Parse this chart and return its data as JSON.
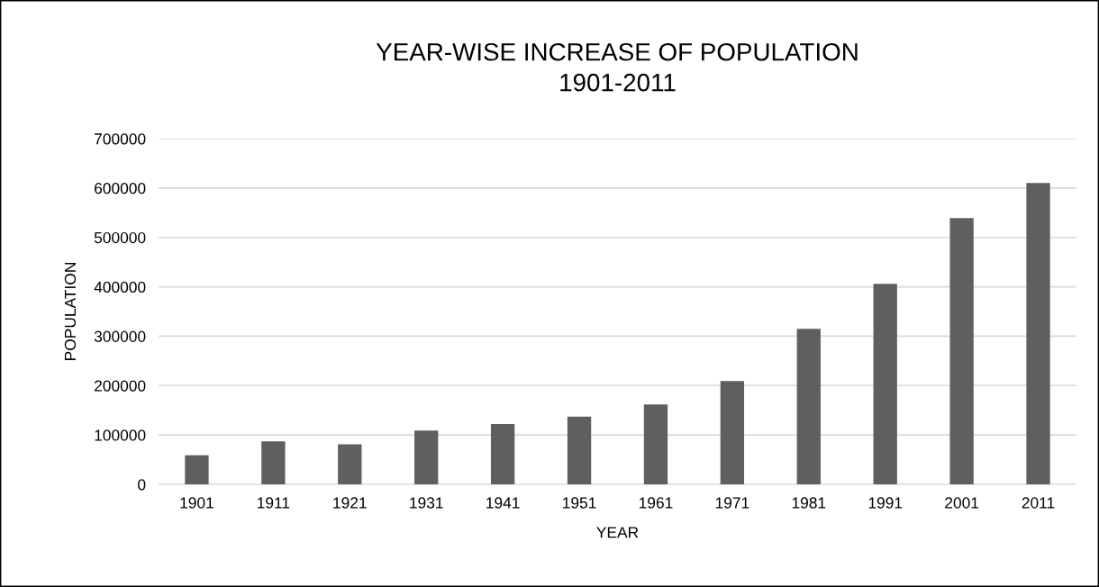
{
  "chart_data": {
    "type": "bar",
    "title": "YEAR-WISE INCREASE OF POPULATION\n1901-2011",
    "xlabel": "YEAR",
    "ylabel": "POPULATION",
    "categories": [
      "1901",
      "1911",
      "1921",
      "1931",
      "1941",
      "1951",
      "1961",
      "1971",
      "1981",
      "1991",
      "2001",
      "2011"
    ],
    "values": [
      59000,
      87000,
      81000,
      109000,
      122000,
      137000,
      162000,
      209000,
      315000,
      406000,
      539000,
      610000
    ],
    "color": "#5f5f5f",
    "ylim": [
      0,
      700000
    ],
    "yticks": [
      0,
      100000,
      200000,
      300000,
      400000,
      500000,
      600000,
      700000
    ],
    "grid": "y",
    "legend": false
  }
}
